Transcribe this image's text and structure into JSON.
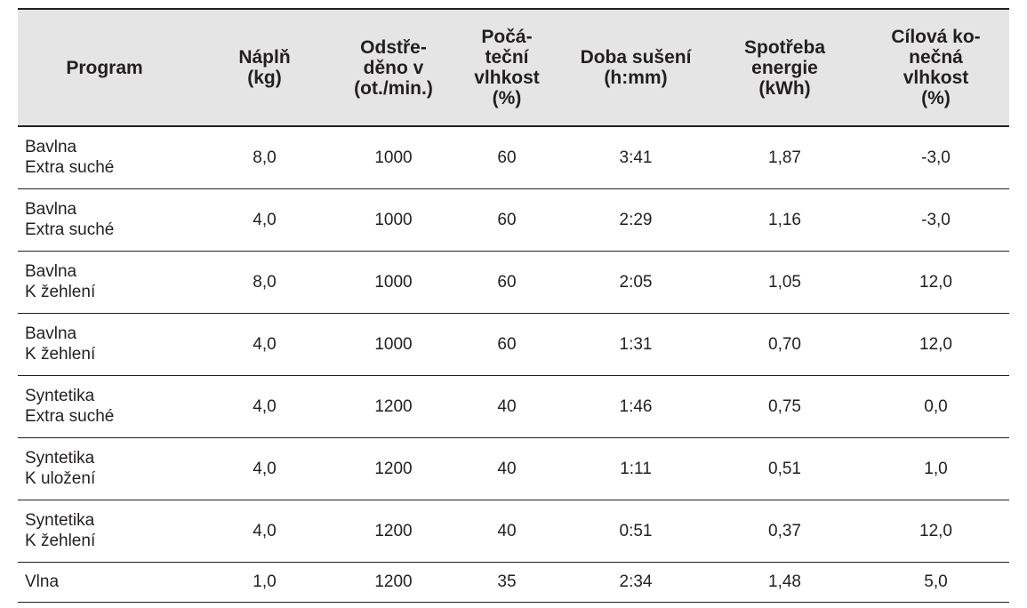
{
  "table": {
    "headers": [
      [
        "Program"
      ],
      [
        "Náplň",
        "(kg)"
      ],
      [
        "Odstře-",
        "děno v",
        "(ot./min.)"
      ],
      [
        "Počá-",
        "teční",
        "vlhkost",
        "(%)"
      ],
      [
        "Doba sušení",
        "(h:mm)"
      ],
      [
        "Spotřeba",
        "energie",
        "(kWh)"
      ],
      [
        "Cílová ko-",
        "nečná",
        "vlhkost",
        "(%)"
      ]
    ],
    "rows": [
      {
        "program": [
          "Bavlna",
          "Extra suché"
        ],
        "load": "8,0",
        "spin": "1000",
        "moisture": "60",
        "time": "3:41",
        "energy": "1,87",
        "final": "-3,0"
      },
      {
        "program": [
          "Bavlna",
          "Extra suché"
        ],
        "load": "4,0",
        "spin": "1000",
        "moisture": "60",
        "time": "2:29",
        "energy": "1,16",
        "final": "-3,0"
      },
      {
        "program": [
          "Bavlna",
          "K žehlení"
        ],
        "load": "8,0",
        "spin": "1000",
        "moisture": "60",
        "time": "2:05",
        "energy": "1,05",
        "final": "12,0"
      },
      {
        "program": [
          "Bavlna",
          "K žehlení"
        ],
        "load": "4,0",
        "spin": "1000",
        "moisture": "60",
        "time": "1:31",
        "energy": "0,70",
        "final": "12,0"
      },
      {
        "program": [
          "Syntetika",
          "Extra suché"
        ],
        "load": "4,0",
        "spin": "1200",
        "moisture": "40",
        "time": "1:46",
        "energy": "0,75",
        "final": "0,0"
      },
      {
        "program": [
          "Syntetika",
          "K uložení"
        ],
        "load": "4,0",
        "spin": "1200",
        "moisture": "40",
        "time": "1:11",
        "energy": "0,51",
        "final": "1,0"
      },
      {
        "program": [
          "Syntetika",
          "K žehlení"
        ],
        "load": "4,0",
        "spin": "1200",
        "moisture": "40",
        "time": "0:51",
        "energy": "0,37",
        "final": "12,0"
      },
      {
        "program": [
          "Vlna"
        ],
        "load": "1,0",
        "spin": "1200",
        "moisture": "35",
        "time": "2:34",
        "energy": "1,48",
        "final": "5,0"
      }
    ]
  }
}
